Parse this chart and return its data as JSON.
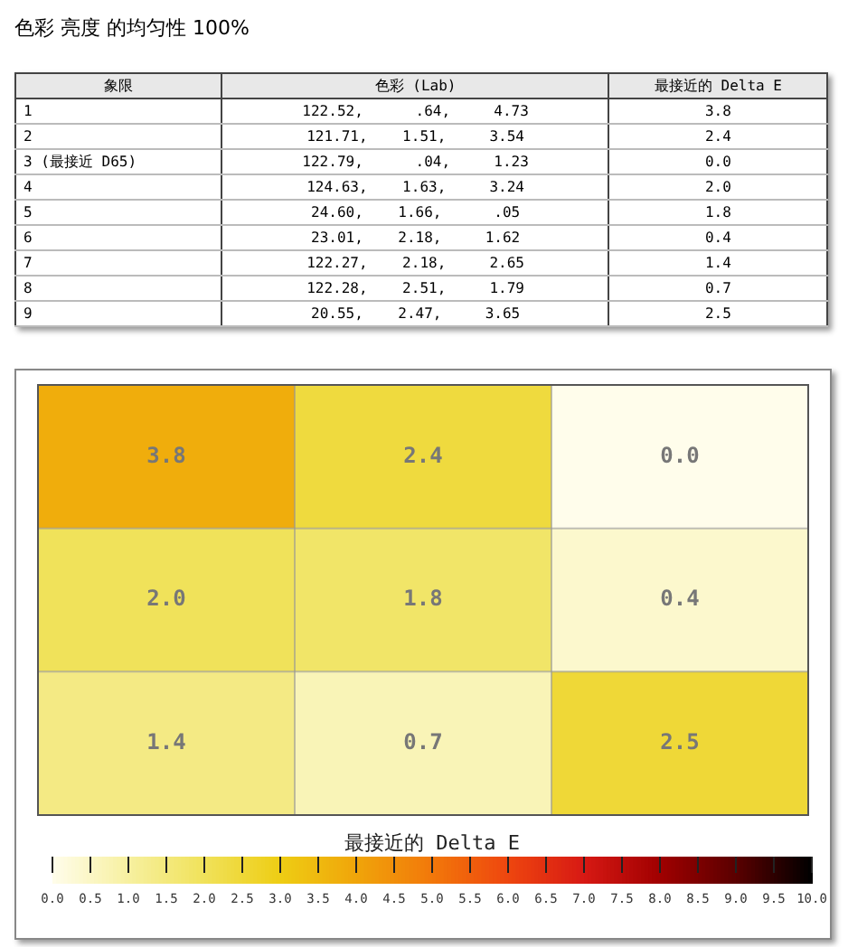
{
  "chart_data": [
    {
      "type": "other",
      "title": "色彩 亮度 的均匀性 100%",
      "categories": [
        "象限",
        "色彩 (Lab)",
        "最接近的 Delta E"
      ],
      "annotations": [
        "1",
        "122.52,      .64,     4.73",
        "3.8",
        "2",
        "121.71,    1.51,     3.54",
        "2.4",
        "3 (最接近 D65)",
        "122.79,      .04,     1.23",
        "0.0",
        "4",
        "124.63,    1.63,     3.24",
        "2.0",
        "5",
        "24.60,    1.66,      .05",
        "1.8",
        "6",
        "23.01,    2.18,     1.62",
        "0.4",
        "7",
        "122.27,    2.18,     2.65",
        "1.4",
        "8",
        "122.28,    2.51,     1.79",
        "0.7",
        "9",
        "20.55,    2.47,     3.65",
        "2.5"
      ]
    },
    {
      "type": "heatmap",
      "categories": [
        null,
        null,
        null
      ],
      "y_categories": [
        null,
        null,
        null
      ],
      "cells": [
        [
          3.8,
          2.4,
          0.0
        ],
        [
          2.0,
          1.8,
          0.4
        ],
        [
          1.4,
          0.7,
          2.5
        ]
      ],
      "cell_labels": [
        [
          "3.8",
          "2.4",
          "0.0"
        ],
        [
          "2.0",
          "1.8",
          "0.4"
        ],
        [
          "1.4",
          "0.7",
          "2.5"
        ]
      ],
      "grid": true,
      "clabel": "最接近的 Delta E",
      "clim": [
        0,
        10
      ],
      "cticks": [
        {
          "value": 0,
          "label": "0.0"
        },
        {
          "value": 0.5,
          "label": "0.5"
        },
        {
          "value": 1,
          "label": "1.0"
        },
        {
          "value": 1.5,
          "label": "1.5"
        },
        {
          "value": 2,
          "label": "2.0"
        },
        {
          "value": 2.5,
          "label": "2.5"
        },
        {
          "value": 3,
          "label": "3.0"
        },
        {
          "value": 3.5,
          "label": "3.5"
        },
        {
          "value": 4,
          "label": "4.0"
        },
        {
          "value": 4.5,
          "label": "4.5"
        },
        {
          "value": 5,
          "label": "5.0"
        },
        {
          "value": 5.5,
          "label": "5.5"
        },
        {
          "value": 6,
          "label": "6.0"
        },
        {
          "value": 6.5,
          "label": "6.5"
        },
        {
          "value": 7,
          "label": "7.0"
        },
        {
          "value": 7.5,
          "label": "7.5"
        },
        {
          "value": 8,
          "label": "8.0"
        },
        {
          "value": 8.5,
          "label": "8.5"
        },
        {
          "value": 9,
          "label": "9.0"
        },
        {
          "value": 9.5,
          "label": "9.5"
        },
        {
          "value": 10,
          "label": "10.0"
        }
      ]
    }
  ]
}
